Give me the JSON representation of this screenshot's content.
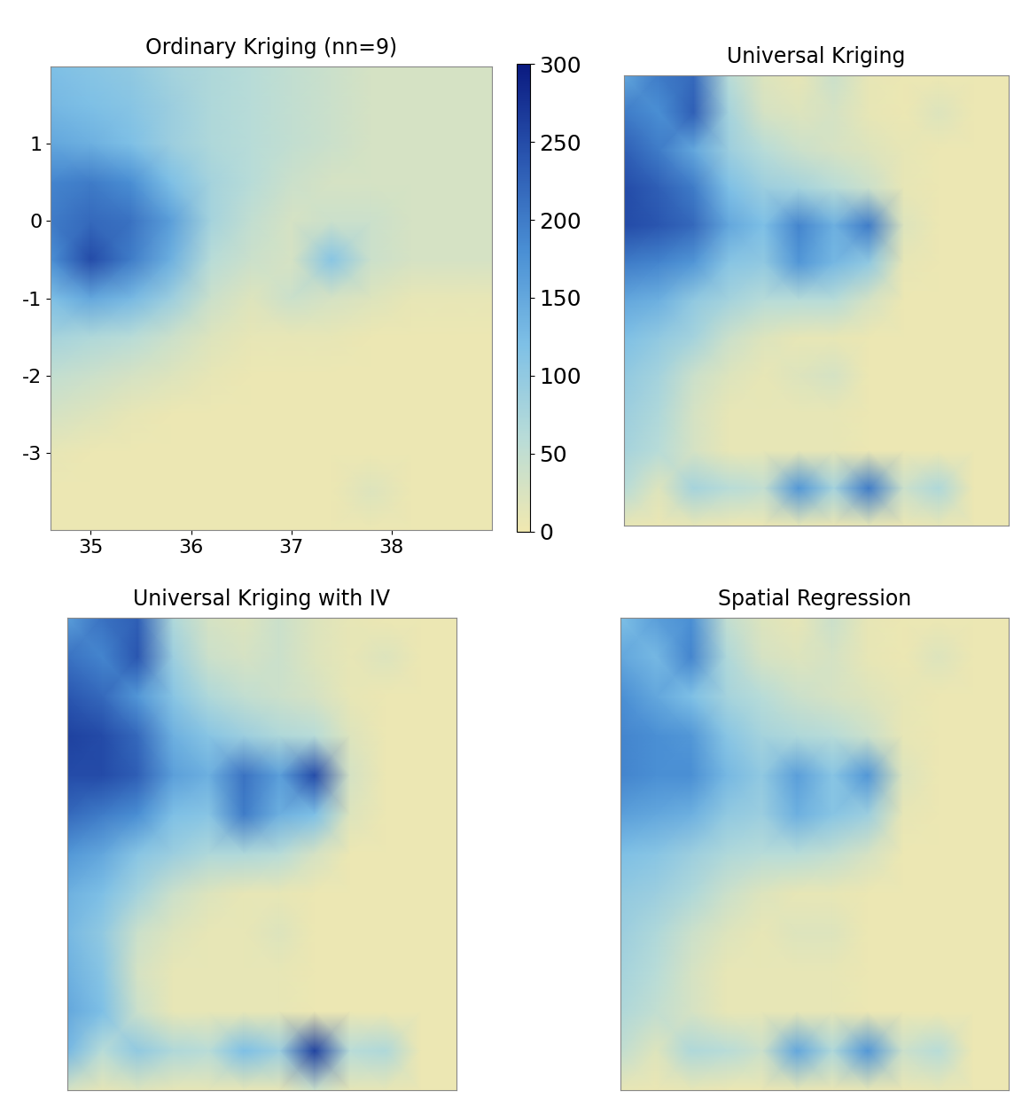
{
  "chart_data": [
    {
      "type": "heatmap",
      "title": "Ordinary Kriging (nn=9)",
      "xlim": [
        34.6,
        39.0
      ],
      "ylim": [
        -4.0,
        2.0
      ],
      "xticks": [
        35,
        36,
        37,
        38
      ],
      "yticks": [
        1,
        0,
        -1,
        -2,
        -3
      ],
      "colorbar_range": [
        0,
        300
      ],
      "colorbar_ticks": [
        0,
        50,
        100,
        150,
        200,
        250,
        300
      ],
      "x": [
        34.6,
        35.0,
        35.4,
        35.8,
        36.2,
        36.6,
        37.0,
        37.4,
        37.8,
        38.2,
        38.6,
        39.0
      ],
      "y": [
        2.0,
        1.5,
        1.0,
        0.5,
        0.0,
        -0.5,
        -1.0,
        -1.5,
        -2.0,
        -2.5,
        -3.0,
        -3.5,
        -4.0
      ],
      "cells": [
        [
          120,
          110,
          100,
          80,
          70,
          60,
          50,
          40,
          30,
          30,
          30,
          30
        ],
        [
          130,
          120,
          110,
          90,
          70,
          60,
          50,
          40,
          30,
          30,
          30,
          30
        ],
        [
          150,
          140,
          120,
          90,
          70,
          60,
          50,
          40,
          30,
          30,
          30,
          30
        ],
        [
          190,
          200,
          180,
          120,
          80,
          60,
          40,
          30,
          30,
          30,
          30,
          30
        ],
        [
          200,
          220,
          210,
          160,
          80,
          50,
          30,
          40,
          40,
          30,
          30,
          30
        ],
        [
          180,
          250,
          200,
          140,
          60,
          40,
          30,
          110,
          40,
          30,
          30,
          30
        ],
        [
          120,
          150,
          130,
          90,
          40,
          20,
          40,
          30,
          20,
          10,
          10,
          10
        ],
        [
          80,
          70,
          60,
          40,
          20,
          10,
          10,
          10,
          5,
          5,
          5,
          5
        ],
        [
          50,
          40,
          30,
          20,
          10,
          5,
          5,
          5,
          5,
          5,
          5,
          5
        ],
        [
          30,
          20,
          10,
          5,
          5,
          5,
          5,
          5,
          5,
          5,
          5,
          5
        ],
        [
          10,
          5,
          5,
          5,
          5,
          5,
          5,
          5,
          5,
          5,
          5,
          5
        ],
        [
          5,
          5,
          5,
          5,
          5,
          5,
          5,
          5,
          20,
          5,
          5,
          5
        ],
        [
          5,
          5,
          5,
          5,
          5,
          5,
          5,
          5,
          5,
          5,
          5,
          5
        ]
      ]
    },
    {
      "type": "heatmap",
      "title": "Universal Kriging",
      "tick_labels": false,
      "xlim": [
        34.6,
        39.0
      ],
      "ylim": [
        -4.0,
        2.0
      ],
      "x": [
        34.6,
        35.0,
        35.4,
        35.8,
        36.2,
        36.6,
        37.0,
        37.4,
        37.8,
        38.2,
        38.6,
        39.0
      ],
      "y": [
        2.0,
        1.5,
        1.0,
        0.5,
        0.0,
        -0.5,
        -1.0,
        -1.5,
        -2.0,
        -2.5,
        -3.0,
        -3.5,
        -4.0
      ],
      "cells": [
        [
          150,
          200,
          220,
          60,
          20,
          10,
          40,
          10,
          5,
          5,
          5,
          5
        ],
        [
          200,
          180,
          230,
          80,
          30,
          20,
          30,
          10,
          5,
          20,
          5,
          5
        ],
        [
          230,
          200,
          150,
          90,
          60,
          40,
          30,
          20,
          10,
          5,
          5,
          5
        ],
        [
          250,
          230,
          200,
          120,
          90,
          80,
          60,
          40,
          10,
          5,
          5,
          5
        ],
        [
          250,
          240,
          220,
          150,
          120,
          190,
          140,
          200,
          20,
          5,
          5,
          5
        ],
        [
          200,
          190,
          170,
          110,
          100,
          170,
          130,
          100,
          10,
          5,
          5,
          5
        ],
        [
          150,
          140,
          100,
          80,
          60,
          60,
          60,
          30,
          5,
          5,
          5,
          5
        ],
        [
          120,
          100,
          80,
          40,
          20,
          10,
          10,
          5,
          5,
          5,
          5,
          5
        ],
        [
          100,
          80,
          40,
          20,
          10,
          20,
          30,
          5,
          5,
          5,
          5,
          5
        ],
        [
          90,
          70,
          30,
          10,
          10,
          10,
          10,
          5,
          5,
          5,
          5,
          5
        ],
        [
          80,
          60,
          30,
          10,
          10,
          10,
          10,
          5,
          5,
          5,
          5,
          5
        ],
        [
          60,
          20,
          80,
          60,
          50,
          170,
          80,
          200,
          40,
          70,
          5,
          5
        ],
        [
          10,
          5,
          10,
          5,
          5,
          10,
          5,
          10,
          5,
          10,
          5,
          5
        ]
      ]
    },
    {
      "type": "heatmap",
      "title": "Universal Kriging with IV",
      "tick_labels": false,
      "xlim": [
        34.6,
        39.0
      ],
      "ylim": [
        -4.0,
        2.0
      ],
      "x": [
        34.6,
        35.0,
        35.4,
        35.8,
        36.2,
        36.6,
        37.0,
        37.4,
        37.8,
        38.2,
        38.6,
        39.0
      ],
      "y": [
        2.0,
        1.5,
        1.0,
        0.5,
        0.0,
        -0.5,
        -1.0,
        -1.5,
        -2.0,
        -2.5,
        -3.0,
        -3.5,
        -4.0
      ],
      "cells": [
        [
          160,
          210,
          230,
          70,
          30,
          20,
          40,
          20,
          10,
          5,
          5,
          5
        ],
        [
          210,
          190,
          240,
          90,
          40,
          30,
          40,
          20,
          10,
          20,
          5,
          5
        ],
        [
          240,
          220,
          170,
          110,
          70,
          50,
          40,
          30,
          10,
          5,
          5,
          5
        ],
        [
          260,
          250,
          220,
          140,
          110,
          90,
          70,
          60,
          20,
          5,
          5,
          5
        ],
        [
          250,
          250,
          230,
          160,
          140,
          210,
          160,
          250,
          30,
          5,
          5,
          5
        ],
        [
          220,
          200,
          180,
          120,
          110,
          200,
          140,
          120,
          20,
          5,
          5,
          5
        ],
        [
          170,
          150,
          110,
          90,
          70,
          70,
          60,
          30,
          5,
          5,
          5,
          5
        ],
        [
          140,
          120,
          80,
          40,
          20,
          10,
          10,
          5,
          5,
          5,
          5,
          5
        ],
        [
          130,
          100,
          40,
          20,
          10,
          10,
          20,
          5,
          5,
          5,
          5,
          5
        ],
        [
          140,
          110,
          30,
          10,
          10,
          10,
          10,
          5,
          5,
          5,
          5,
          5
        ],
        [
          150,
          120,
          40,
          10,
          10,
          10,
          10,
          5,
          5,
          5,
          5,
          5
        ],
        [
          130,
          60,
          100,
          70,
          60,
          120,
          90,
          260,
          60,
          70,
          5,
          5
        ],
        [
          30,
          10,
          20,
          10,
          10,
          10,
          10,
          40,
          10,
          10,
          5,
          5
        ]
      ]
    },
    {
      "type": "heatmap",
      "title": "Spatial Regression",
      "tick_labels": false,
      "xlim": [
        34.6,
        39.0
      ],
      "ylim": [
        -4.0,
        2.0
      ],
      "x": [
        34.6,
        35.0,
        35.4,
        35.8,
        36.2,
        36.6,
        37.0,
        37.4,
        37.8,
        38.2,
        38.6,
        39.0
      ],
      "y": [
        2.0,
        1.5,
        1.0,
        0.5,
        0.0,
        -0.5,
        -1.0,
        -1.5,
        -2.0,
        -2.5,
        -3.0,
        -3.5,
        -4.0
      ],
      "cells": [
        [
          120,
          160,
          180,
          50,
          20,
          10,
          40,
          10,
          5,
          5,
          5,
          5
        ],
        [
          150,
          130,
          190,
          70,
          30,
          20,
          30,
          10,
          5,
          20,
          5,
          5
        ],
        [
          180,
          150,
          120,
          80,
          60,
          40,
          30,
          20,
          10,
          5,
          5,
          5
        ],
        [
          190,
          180,
          170,
          110,
          80,
          70,
          60,
          40,
          10,
          5,
          5,
          5
        ],
        [
          190,
          180,
          180,
          130,
          100,
          160,
          110,
          170,
          20,
          5,
          5,
          5
        ],
        [
          160,
          150,
          140,
          100,
          90,
          140,
          110,
          90,
          10,
          5,
          5,
          5
        ],
        [
          120,
          110,
          90,
          70,
          60,
          60,
          50,
          30,
          5,
          5,
          5,
          5
        ],
        [
          100,
          90,
          70,
          40,
          20,
          10,
          10,
          5,
          5,
          5,
          5,
          5
        ],
        [
          90,
          70,
          40,
          20,
          10,
          20,
          20,
          5,
          5,
          5,
          5,
          5
        ],
        [
          80,
          60,
          30,
          10,
          10,
          10,
          10,
          5,
          5,
          5,
          5,
          5
        ],
        [
          70,
          50,
          30,
          10,
          10,
          10,
          10,
          5,
          5,
          5,
          5,
          5
        ],
        [
          50,
          20,
          70,
          60,
          40,
          150,
          70,
          170,
          40,
          60,
          5,
          5
        ],
        [
          10,
          5,
          10,
          5,
          5,
          10,
          5,
          10,
          5,
          10,
          5,
          5
        ]
      ]
    }
  ]
}
